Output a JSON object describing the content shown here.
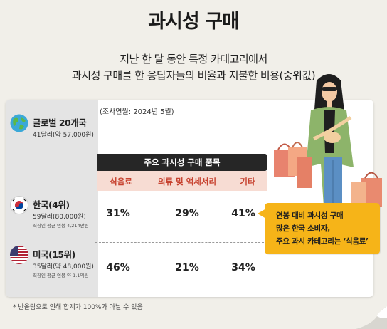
{
  "title": "과시성 구매",
  "subtitle_line1": "지난 한 달 동안 특정 카테고리에서",
  "subtitle_line2": "과시성 구매를 한 응답자들의 비율과 지불한 비용(중위값)",
  "survey_date": "(조사연월: 2024년 5월)",
  "category_header": "주요 과시성 구매 품목",
  "columns": [
    "식음료",
    "의류 및 액세서리",
    "기타"
  ],
  "global": {
    "name": "글로벌 20개국",
    "amount": "41달러(약 57,000원)"
  },
  "korea": {
    "name": "한국(4위)",
    "amount": "59달러(80,000원)",
    "salary": "직장인 평균 연봉 4,214만원",
    "values": [
      "31%",
      "29%",
      "41%"
    ]
  },
  "usa": {
    "name": "미국(15위)",
    "amount": "35달러(약 48,000원)",
    "salary": "직장인 평균 연봉 약 1.1억원",
    "values": [
      "46%",
      "21%",
      "34%"
    ]
  },
  "callout": [
    "연봉 대비 과시성 구매",
    "많은 한국 소비자,",
    "주요 과시 카테고리는 ‘식음료’"
  ],
  "footnote": "* 반올림으로 인해 합계가 100%가 아닐 수 있음",
  "colors": {
    "accent_red": "#c7422f",
    "callout_yellow": "#f6b418",
    "header_dark": "#262626"
  }
}
